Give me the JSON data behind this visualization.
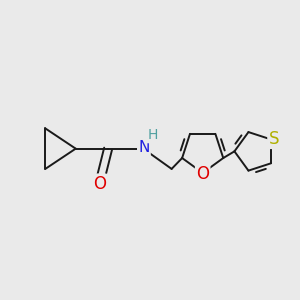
{
  "background_color": "#eaeaea",
  "bond_color": "#1a1a1a",
  "bond_width": 1.4,
  "atom_colors": {
    "O_carbonyl": "#e00000",
    "O_furan": "#e00000",
    "N": "#2020e0",
    "H": "#50a0a0",
    "S": "#b0b000",
    "C": "#1a1a1a"
  },
  "font_size_atom": 11,
  "figsize": [
    3.0,
    3.0
  ],
  "dpi": 100,
  "xlim": [
    -1.8,
    2.6
  ],
  "ylim": [
    -1.0,
    1.2
  ]
}
